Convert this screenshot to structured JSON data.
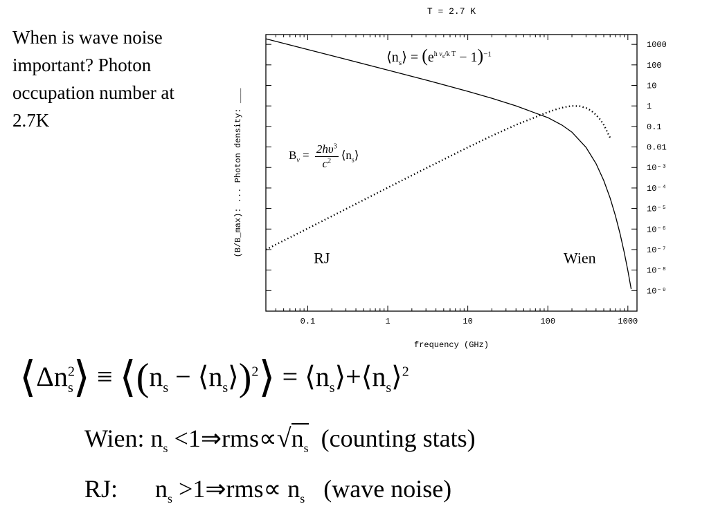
{
  "intro_text": "When is wave noise important? Photon occupation number at 2.7K",
  "chart_data": {
    "type": "line",
    "title": "T = 2.7 K",
    "xlabel": "frequency (GHz)",
    "ylabel": "(B/B_max): ... Photon density: ___",
    "x_scale": "log",
    "y_scale": "log",
    "xlim": [
      0.03,
      1300
    ],
    "ylim": [
      1e-10,
      3000
    ],
    "x_ticks": [
      {
        "v": 0.1,
        "label": "0.1"
      },
      {
        "v": 1,
        "label": "1"
      },
      {
        "v": 10,
        "label": "10"
      },
      {
        "v": 100,
        "label": "100"
      },
      {
        "v": 1000,
        "label": "1000"
      }
    ],
    "y_ticks": [
      {
        "v": 1000,
        "label": "1000"
      },
      {
        "v": 100,
        "label": "100"
      },
      {
        "v": 10,
        "label": "10"
      },
      {
        "v": 1,
        "label": "1"
      },
      {
        "v": 0.1,
        "label": "0.1"
      },
      {
        "v": 0.01,
        "label": "0.01"
      },
      {
        "v": 0.001,
        "label": "10⁻³"
      },
      {
        "v": 0.0001,
        "label": "10⁻⁴"
      },
      {
        "v": 1e-05,
        "label": "10⁻⁵"
      },
      {
        "v": 1e-06,
        "label": "10⁻⁶"
      },
      {
        "v": 1e-07,
        "label": "10⁻⁷"
      },
      {
        "v": 1e-08,
        "label": "10⁻⁸"
      },
      {
        "v": 1e-09,
        "label": "10⁻⁹"
      }
    ],
    "temperature_K": 2.7,
    "series": [
      {
        "style": "solid",
        "x": [
          0.03,
          0.1,
          0.3,
          1,
          3,
          10,
          20,
          40,
          60,
          100,
          150,
          200,
          300,
          400,
          500,
          600,
          700,
          800,
          900,
          1000,
          1100
        ],
        "y": [
          1870,
          562,
          187,
          55.8,
          18.3,
          5.15,
          2.37,
          1.01,
          0.56,
          0.27,
          0.117,
          0.053,
          0.0095,
          0.00156,
          0.000231,
          3.25e-05,
          4.4e-06,
          5.8e-07,
          7.5e-08,
          9.6e-09,
          1.2e-09
        ]
      },
      {
        "style": "dotted",
        "x": [
          0.03,
          0.1,
          0.3,
          1,
          3,
          10,
          20,
          40,
          60,
          100,
          130,
          160,
          200,
          250,
          300,
          350,
          400,
          450,
          500,
          600
        ],
        "y": [
          1e-07,
          1.06e-06,
          9.47e-06,
          0.000104,
          0.000917,
          0.0095,
          0.0349,
          0.119,
          0.224,
          0.498,
          0.7,
          0.87,
          1.0,
          0.97,
          0.8,
          0.58,
          0.37,
          0.22,
          0.12,
          0.028
        ]
      }
    ],
    "annotations": [
      {
        "text": "RJ",
        "x": 0.15,
        "y": 1e-08
      },
      {
        "text": "Wien",
        "x": 250,
        "y": 1e-08
      }
    ]
  }
}
